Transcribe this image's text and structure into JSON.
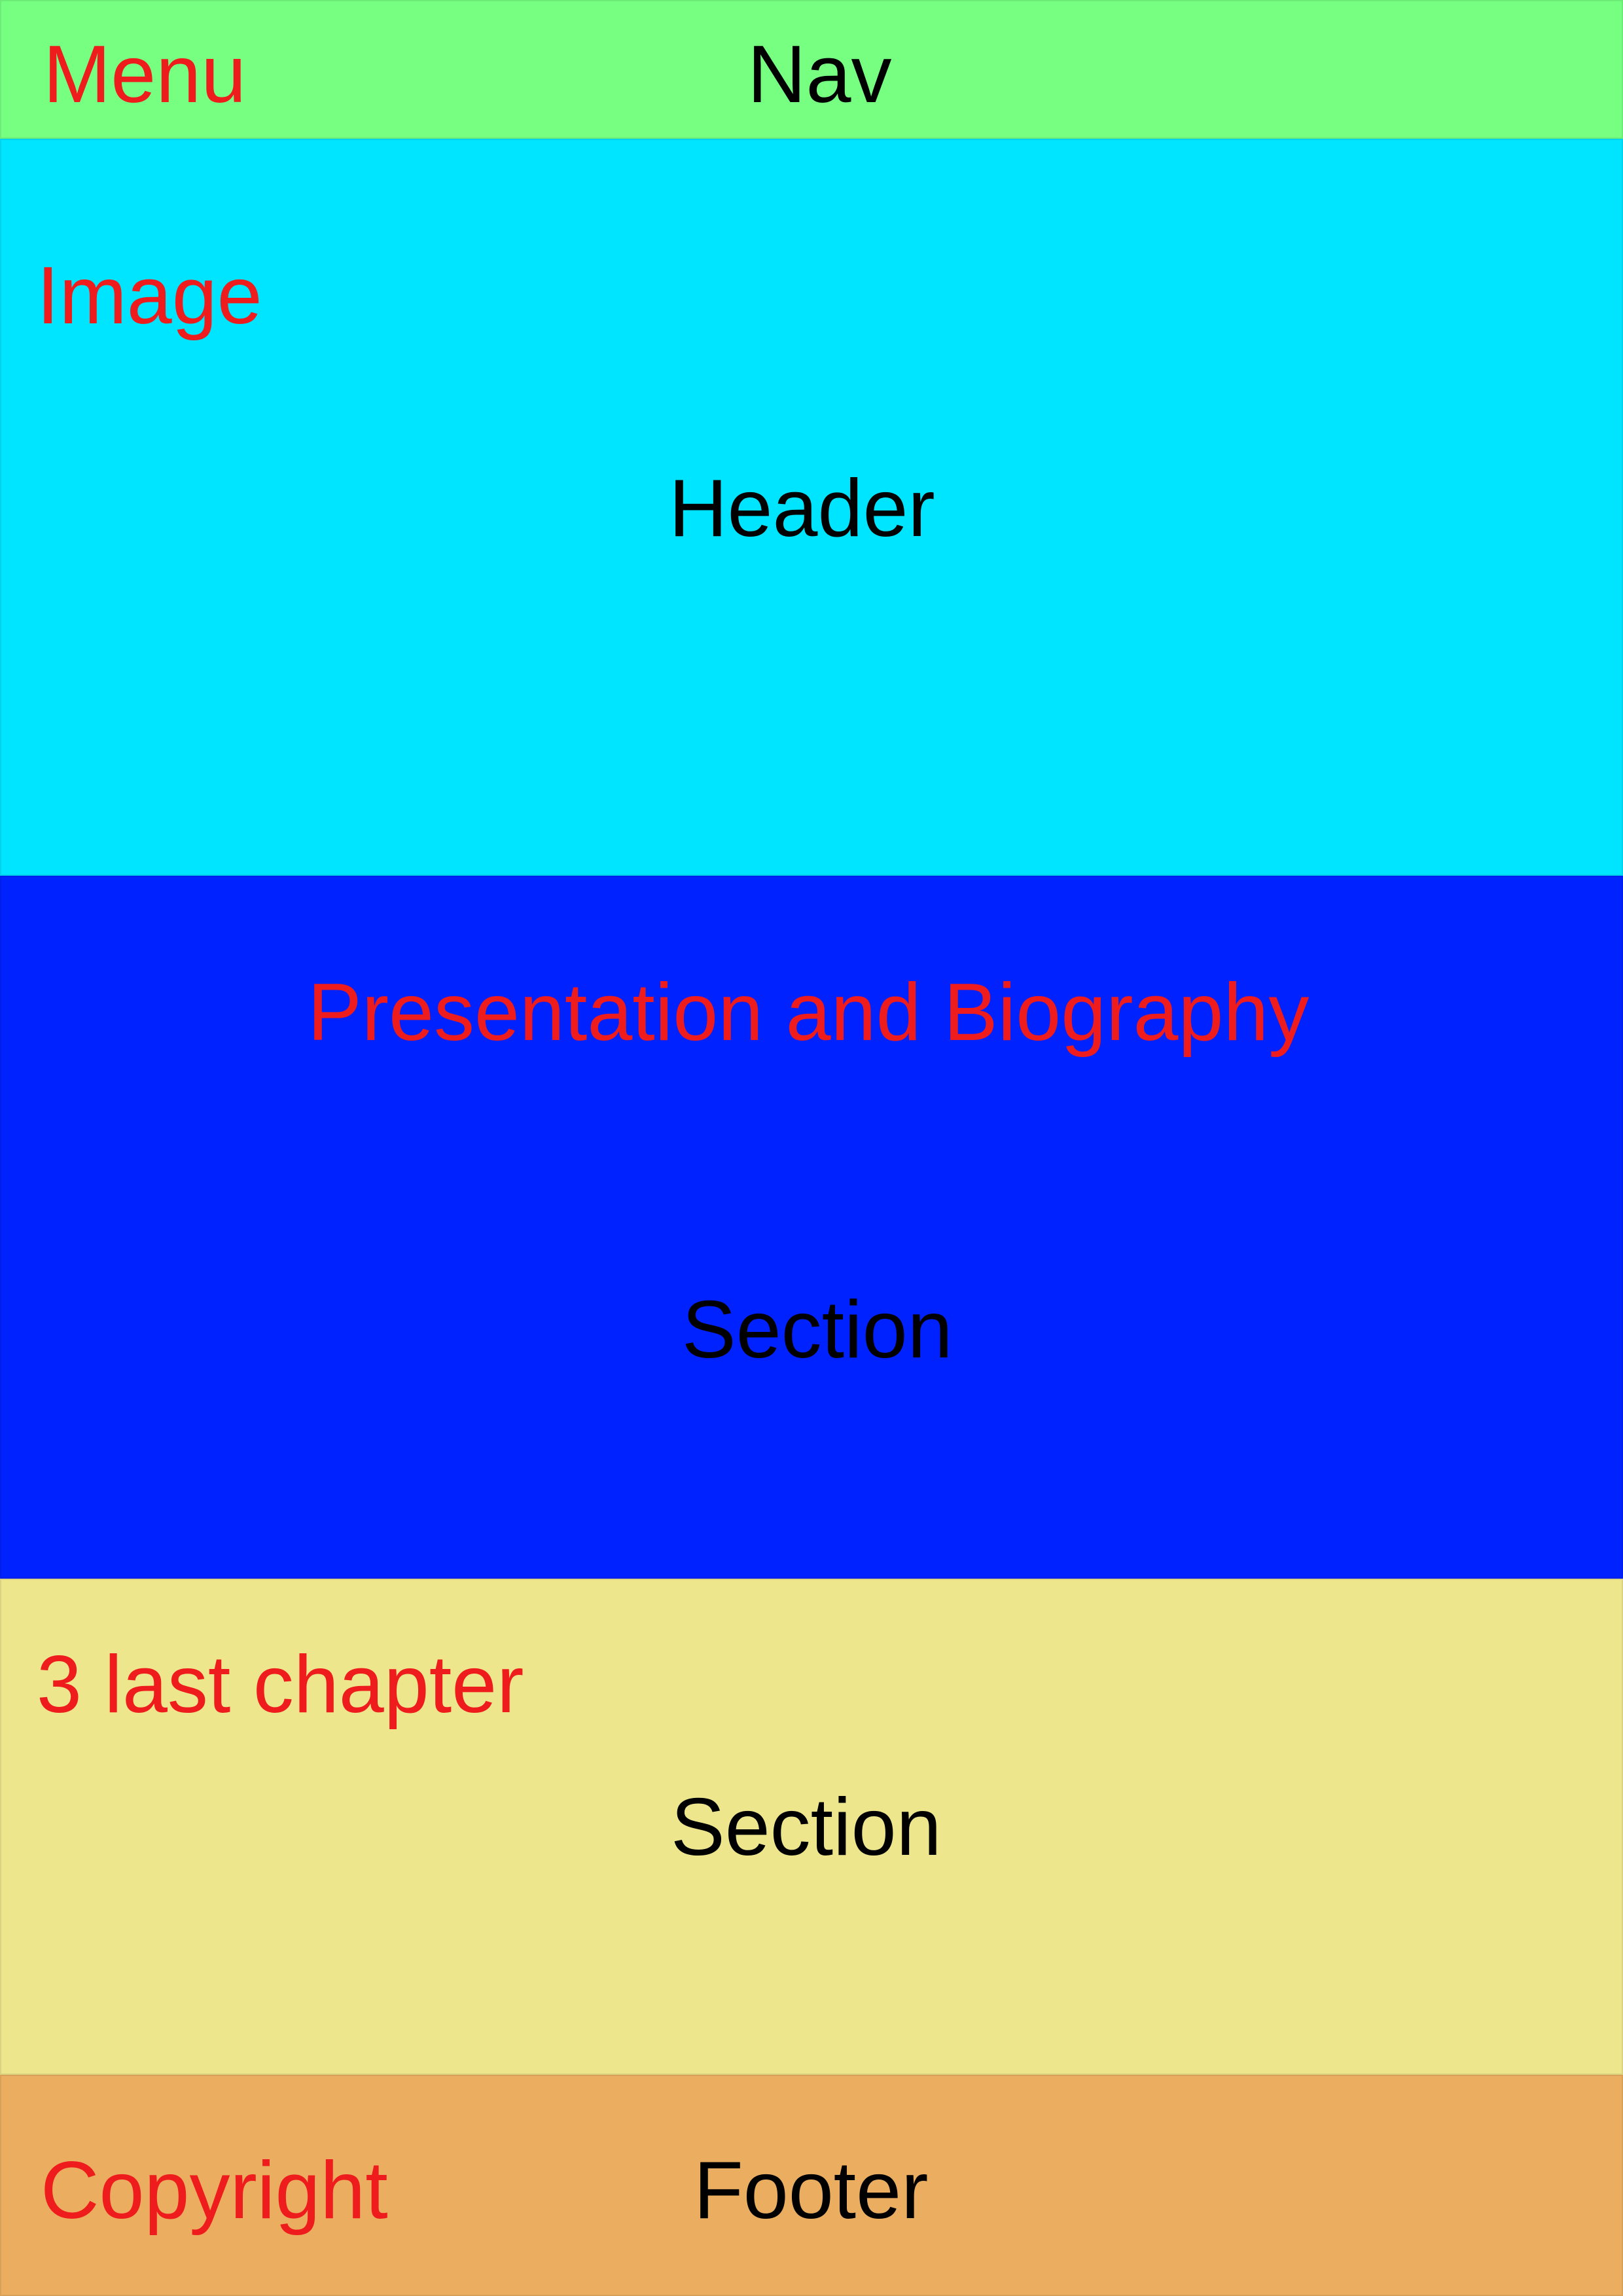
{
  "nav": {
    "menu_label": "Menu",
    "title": "Nav",
    "color": "#76ff81"
  },
  "header": {
    "image_label": "Image",
    "title": "Header",
    "color": "#00e5ff"
  },
  "section_presentation": {
    "label": "Presentation and Biography",
    "title": "Section",
    "color": "#0022ff"
  },
  "section_chapters": {
    "label": "3 last chapter",
    "title": "Section",
    "color": "#ede68d"
  },
  "footer": {
    "copyright_label": "Copyright",
    "title": "Footer",
    "color": "#ebae61"
  },
  "colors": {
    "annotation_text": "#ee1c1c",
    "region_text": "#000000"
  }
}
